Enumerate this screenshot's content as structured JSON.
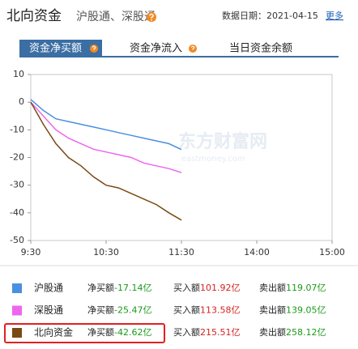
{
  "header": {
    "title": "北向资金",
    "subtitle": "沪股通、深股通",
    "date_label": "数据日期：2021-04-15",
    "more": "更多"
  },
  "tabs": [
    "资金净买额",
    "资金净流入",
    "当日资金余额"
  ],
  "watermark": [
    "东方财富网",
    "eastmoney.com"
  ],
  "chart_data": {
    "type": "line",
    "x": [
      0,
      10,
      20,
      30,
      40,
      50,
      60,
      70,
      80,
      90,
      100,
      110,
      120
    ],
    "xlim": [
      0,
      240
    ],
    "xticks": [
      {
        "value": 0,
        "label": "9:30"
      },
      {
        "value": 60,
        "label": "10:30"
      },
      {
        "value": 120,
        "label": "11:30"
      },
      {
        "value": 180,
        "label": "14:00"
      },
      {
        "value": 240,
        "label": "15:00"
      }
    ],
    "ylim": [
      -50,
      10
    ],
    "yticks": [
      10,
      0,
      -10,
      -20,
      -30,
      -40,
      -50
    ],
    "series": [
      {
        "name": "沪股通",
        "color": "#4a90e2",
        "values": [
          1,
          -3,
          -6,
          -7,
          -8,
          -9,
          -10,
          -11,
          -12,
          -13,
          -14,
          -15,
          -17.14
        ]
      },
      {
        "name": "深股通",
        "color": "#ee66ee",
        "values": [
          0,
          -5,
          -10,
          -13,
          -15,
          -17,
          -18,
          -19,
          -20,
          -22,
          -23,
          -24,
          -25.47
        ]
      },
      {
        "name": "北向资金",
        "color": "#7a4a14",
        "values": [
          0,
          -8,
          -15,
          -20,
          -23,
          -27,
          -30,
          -31,
          -33,
          -35,
          -37,
          -40,
          -42.62
        ]
      }
    ]
  },
  "summary": {
    "rows": [
      {
        "net_label": "净买额",
        "net_value": "-17.14亿",
        "buy_label": "买入额",
        "buy_value": "101.92亿",
        "sell_label": "卖出额",
        "sell_value": "119.07亿"
      },
      {
        "net_label": "净买额",
        "net_value": "-25.47亿",
        "buy_label": "买入额",
        "buy_value": "113.58亿",
        "sell_label": "卖出额",
        "sell_value": "139.05亿"
      },
      {
        "net_label": "净买额",
        "net_value": "-42.62亿",
        "buy_label": "买入额",
        "buy_value": "215.51亿",
        "sell_label": "卖出额",
        "sell_value": "258.12亿"
      }
    ]
  }
}
